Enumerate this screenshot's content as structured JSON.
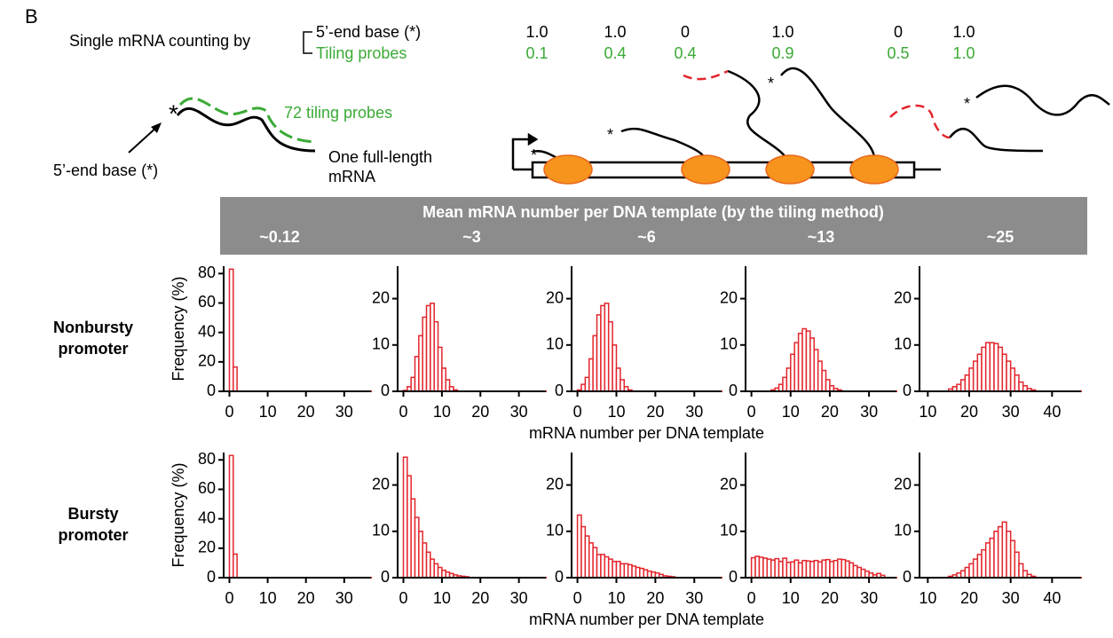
{
  "panel_label": "B",
  "counting": {
    "label": "Single mRNA counting by",
    "rows": [
      {
        "name": "5’-end base (*)",
        "values": [
          "1.0",
          "1.0",
          "0",
          "1.0",
          "0",
          "1.0"
        ]
      },
      {
        "name": "Tiling probes",
        "values": [
          "0.1",
          "0.4",
          "0.4",
          "0.9",
          "0.5",
          "1.0"
        ]
      }
    ]
  },
  "diagram": {
    "tiling_label": "72 tiling probes",
    "five_end_label": "5’-end base (*)",
    "full_length_label": [
      "One full-length",
      "mRNA"
    ]
  },
  "header": {
    "title": "Mean mRNA number per DNA template (by the tiling method)",
    "columns": [
      "~0.12",
      "~3",
      "~6",
      "~13",
      "~25"
    ]
  },
  "row_labels": [
    [
      "Nonbursty",
      "promoter"
    ],
    [
      "Bursty",
      "promoter"
    ]
  ],
  "chart_data": [
    {
      "type": "histogram",
      "color": "#e3262d",
      "y_label": "Frequency (%)",
      "bins": [
        0,
        1,
        2
      ],
      "values": [
        83,
        16.5
      ],
      "xlim": [
        -1.5,
        37
      ],
      "xticks": [
        0,
        10,
        20,
        30
      ],
      "ylim": [
        0,
        85
      ],
      "yticks": [
        0,
        20,
        40,
        60,
        80
      ]
    },
    {
      "type": "histogram",
      "color": "#e3262d",
      "bins": [
        0,
        1,
        2,
        3,
        4,
        5,
        6,
        7,
        8,
        9,
        10,
        11,
        12,
        13,
        14
      ],
      "values": [
        0.2,
        1,
        3,
        7.5,
        12,
        16,
        18.5,
        19,
        15,
        9.5,
        5,
        2.5,
        1,
        0.3
      ],
      "xlim": [
        -1.5,
        37
      ],
      "xticks": [
        0,
        10,
        20,
        30
      ],
      "ylim": [
        0,
        27
      ],
      "yticks": [
        0,
        10,
        20
      ]
    },
    {
      "type": "histogram",
      "color": "#e3262d",
      "x_label": "mRNA number per DNA template",
      "bins": [
        0,
        1,
        2,
        3,
        4,
        5,
        6,
        7,
        8,
        9,
        10,
        11,
        12,
        13,
        14
      ],
      "values": [
        0.3,
        1.5,
        3,
        7,
        12,
        16.5,
        18.5,
        19,
        15,
        10,
        5,
        2.5,
        1,
        0.3
      ],
      "xlim": [
        -1.5,
        37
      ],
      "xticks": [
        0,
        10,
        20,
        30
      ],
      "ylim": [
        0,
        27
      ],
      "yticks": [
        0,
        10,
        20
      ]
    },
    {
      "type": "histogram",
      "color": "#e3262d",
      "bins": [
        5,
        6,
        7,
        8,
        9,
        10,
        11,
        12,
        13,
        14,
        15,
        16,
        17,
        18,
        19,
        20,
        21,
        22,
        23
      ],
      "values": [
        0.3,
        0.7,
        1.5,
        3,
        5,
        8,
        10.5,
        12.5,
        13.5,
        13,
        11.5,
        9,
        6.5,
        4.5,
        2.5,
        1.2,
        0.6,
        0.3
      ],
      "xlim": [
        -1.5,
        37
      ],
      "xticks": [
        0,
        10,
        20,
        30
      ],
      "ylim": [
        0,
        27
      ],
      "yticks": [
        0,
        10,
        20
      ]
    },
    {
      "type": "histogram",
      "color": "#e3262d",
      "bins": [
        15,
        16,
        17,
        18,
        19,
        20,
        21,
        22,
        23,
        24,
        25,
        26,
        27,
        28,
        29,
        30,
        31,
        32,
        33,
        34,
        35,
        36
      ],
      "values": [
        0.5,
        1,
        1.5,
        2.5,
        3.5,
        5,
        6.5,
        8,
        9.5,
        10.5,
        10.5,
        10.3,
        9.5,
        8,
        6.5,
        5,
        3.5,
        2,
        1.2,
        0.6,
        0.3
      ],
      "xlim": [
        8,
        47
      ],
      "xticks": [
        10,
        20,
        30,
        40
      ],
      "ylim": [
        0,
        27
      ],
      "yticks": [
        0,
        10,
        20
      ]
    },
    {
      "type": "histogram",
      "color": "#e3262d",
      "y_label": "Frequency (%)",
      "bins": [
        0,
        1,
        2
      ],
      "values": [
        83,
        16
      ],
      "xlim": [
        -1.5,
        37
      ],
      "xticks": [
        0,
        10,
        20,
        30
      ],
      "ylim": [
        0,
        85
      ],
      "yticks": [
        0,
        20,
        40,
        60,
        80
      ]
    },
    {
      "type": "histogram",
      "color": "#e3262d",
      "bins": [
        0,
        1,
        2,
        3,
        4,
        5,
        6,
        7,
        8,
        9,
        10,
        11,
        12,
        13,
        14,
        15,
        16,
        17
      ],
      "values": [
        26,
        22,
        17,
        13,
        10,
        7.5,
        5.5,
        4,
        3,
        2.2,
        1.6,
        1.2,
        0.9,
        0.6,
        0.4,
        0.3,
        0.2
      ],
      "xlim": [
        -1.5,
        37
      ],
      "xticks": [
        0,
        10,
        20,
        30
      ],
      "ylim": [
        0,
        27
      ],
      "yticks": [
        0,
        10,
        20
      ]
    },
    {
      "type": "histogram",
      "color": "#e3262d",
      "x_label": "mRNA number per DNA template",
      "bins": [
        0,
        1,
        2,
        3,
        4,
        5,
        6,
        7,
        8,
        9,
        10,
        11,
        12,
        13,
        14,
        15,
        16,
        17,
        18,
        19,
        20,
        21,
        22,
        23,
        24,
        25
      ],
      "values": [
        13.5,
        11,
        9,
        7.5,
        6.5,
        5,
        5,
        4.5,
        4,
        3.5,
        3.5,
        3,
        3,
        2.8,
        2.5,
        2.2,
        2,
        1.7,
        1.4,
        1.2,
        1,
        0.7,
        0.4,
        0.3,
        0.2
      ],
      "xlim": [
        -1.5,
        37
      ],
      "xticks": [
        0,
        10,
        20,
        30
      ],
      "ylim": [
        0,
        27
      ],
      "yticks": [
        0,
        10,
        20
      ]
    },
    {
      "type": "histogram",
      "color": "#e3262d",
      "bins": [
        0,
        1,
        2,
        3,
        4,
        5,
        6,
        7,
        8,
        9,
        10,
        11,
        12,
        13,
        14,
        15,
        16,
        17,
        18,
        19,
        20,
        21,
        22,
        23,
        24,
        25,
        26,
        27,
        28,
        29,
        30,
        31,
        32,
        33,
        34
      ],
      "values": [
        4.3,
        4.6,
        4.4,
        4.2,
        4,
        3.8,
        4.1,
        3.5,
        4.2,
        3.3,
        3.4,
        3.8,
        3.2,
        3.7,
        3.6,
        3.5,
        3.7,
        3.4,
        3.8,
        3.9,
        3.5,
        3.7,
        4,
        3.9,
        3.6,
        3.2,
        2.6,
        2.2,
        1.8,
        1.4,
        1,
        0.6,
        0.9,
        0.5
      ],
      "xlim": [
        -1.5,
        37
      ],
      "xticks": [
        0,
        10,
        20,
        30
      ],
      "ylim": [
        0,
        27
      ],
      "yticks": [
        0,
        10,
        20
      ]
    },
    {
      "type": "histogram",
      "color": "#e3262d",
      "bins": [
        15,
        16,
        17,
        18,
        19,
        20,
        21,
        22,
        23,
        24,
        25,
        26,
        27,
        28,
        29,
        30,
        31,
        32,
        33,
        34,
        35,
        36
      ],
      "values": [
        0.3,
        0.6,
        1,
        1.5,
        2.2,
        3,
        4,
        5,
        6,
        7.5,
        8.5,
        10,
        11,
        12,
        10,
        8,
        5.5,
        3,
        1.5,
        0.7,
        0.3
      ],
      "xlim": [
        8,
        47
      ],
      "xticks": [
        10,
        20,
        30,
        40
      ],
      "ylim": [
        0,
        27
      ],
      "yticks": [
        0,
        10,
        20
      ]
    }
  ]
}
